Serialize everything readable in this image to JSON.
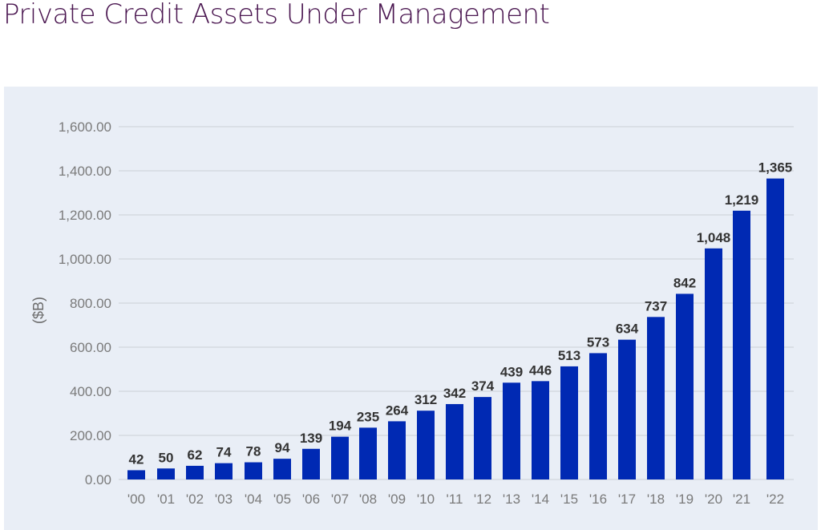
{
  "title": "Private Credit Assets Under Management",
  "colors": {
    "title": "#4a1650",
    "panel_bg": "#e9eef6",
    "bar": "#0029b3",
    "gridline": "#d6dae0",
    "tick_label": "#7a7a7a",
    "data_label": "#333333"
  },
  "chart_data": {
    "type": "bar",
    "title": "Private Credit Assets Under Management",
    "xlabel": "",
    "ylabel": "($B)",
    "ylim": [
      0,
      1600
    ],
    "yticks": [
      0,
      200,
      400,
      600,
      800,
      1000,
      1200,
      1400,
      1600
    ],
    "ytick_labels": [
      "0.00",
      "200.00",
      "400.00",
      "600.00",
      "800.00",
      "1,000.00",
      "1,200.00",
      "1,400.00",
      "1,600.00"
    ],
    "grid": true,
    "legend": null,
    "categories": [
      "'00",
      "'01",
      "'02",
      "'03",
      "'04",
      "'05",
      "'06",
      "'07",
      "'08",
      "'09",
      "'10",
      "'11",
      "'12",
      "'13",
      "'14",
      "'15",
      "'16",
      "'17",
      "'18",
      "'19",
      "'20",
      "'21",
      "'22"
    ],
    "values": [
      42,
      50,
      62,
      74,
      78,
      94,
      139,
      194,
      235,
      264,
      312,
      342,
      374,
      439,
      446,
      513,
      573,
      634,
      737,
      842,
      1048,
      1219,
      1365
    ],
    "value_labels": [
      "42",
      "50",
      "62",
      "74",
      "78",
      "94",
      "139",
      "194",
      "235",
      "264",
      "312",
      "342",
      "374",
      "439",
      "446",
      "513",
      "573",
      "634",
      "737",
      "842",
      "1,048",
      "1,219",
      "1,365"
    ]
  }
}
